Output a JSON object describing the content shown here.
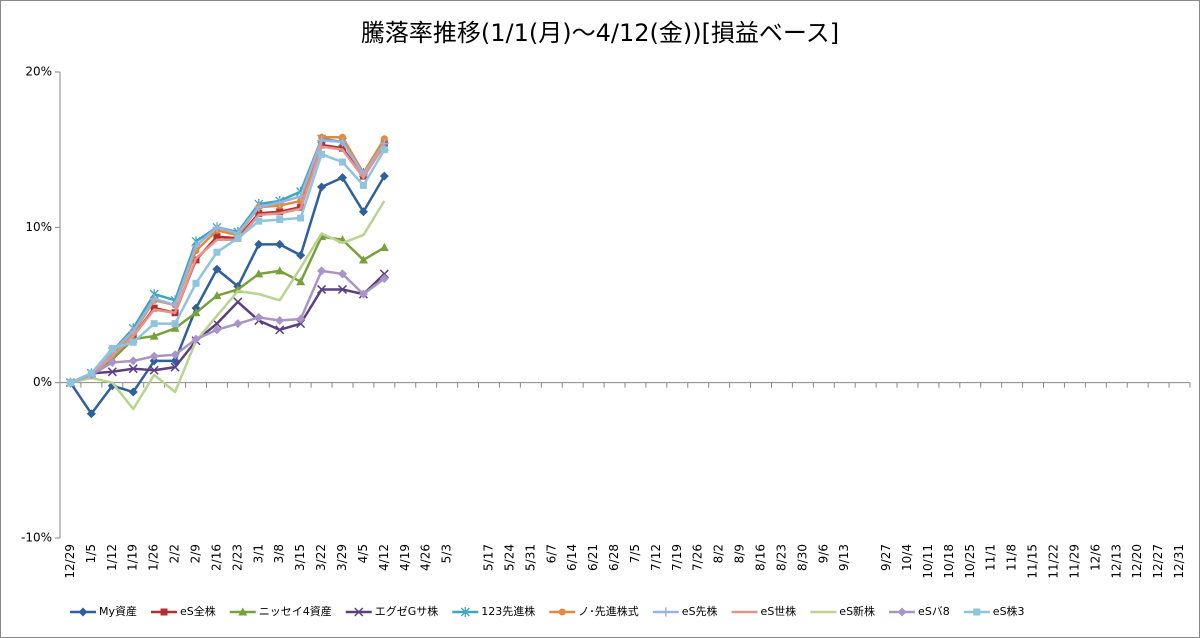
{
  "chart_data": {
    "type": "line",
    "title": "騰落率推移(1/1(月)～4/12(金))[損益ベース]",
    "categories": [
      "12/29",
      "1/5",
      "1/12",
      "1/19",
      "1/26",
      "2/2",
      "2/9",
      "2/16",
      "2/23",
      "3/1",
      "3/8",
      "3/15",
      "3/22",
      "3/29",
      "4/5",
      "4/12",
      "4/19",
      "4/26",
      "5/3",
      null,
      "5/17",
      "5/24",
      "5/31",
      "6/7",
      "6/14",
      "6/21",
      "6/28",
      "7/5",
      "7/12",
      "7/19",
      "7/26",
      "8/2",
      "8/9",
      "8/16",
      "8/23",
      "8/30",
      "9/6",
      "9/13",
      null,
      "9/27",
      "10/4",
      "10/11",
      "10/18",
      "10/25",
      "11/1",
      "11/8",
      "11/15",
      "11/22",
      "11/29",
      "12/6",
      "12/13",
      "12/20",
      "12/27",
      "12/31"
    ],
    "ylim": [
      -10,
      20
    ],
    "yticks": [
      {
        "value": -10,
        "label": "-10%"
      },
      {
        "value": 0,
        "label": "0%"
      },
      {
        "value": 10,
        "label": "10%"
      },
      {
        "value": 20,
        "label": "20%"
      }
    ],
    "grid": false,
    "legend": "bottom",
    "series": [
      {
        "name": "My資産",
        "color": "#2e5f9e",
        "marker": "diamond",
        "values": [
          0,
          -2.0,
          -0.2,
          -0.6,
          1.4,
          1.4,
          4.8,
          7.3,
          6.2,
          8.9,
          8.9,
          8.2,
          12.6,
          13.2,
          11.0,
          13.3,
          null,
          null,
          null,
          null,
          null,
          null,
          null,
          null,
          null,
          null,
          null,
          null,
          null,
          null,
          null,
          null,
          null,
          null,
          null,
          null,
          null,
          null,
          null,
          null,
          null,
          null,
          null,
          null,
          null,
          null,
          null,
          null,
          null,
          null,
          null,
          null,
          null,
          null
        ]
      },
      {
        "name": "eS全株",
        "color": "#b2302f",
        "marker": "square",
        "values": [
          0,
          0.5,
          1.8,
          3.0,
          4.8,
          4.5,
          7.9,
          9.4,
          9.3,
          10.9,
          11.0,
          11.3,
          15.3,
          15.1,
          13.3,
          15.4,
          null,
          null,
          null,
          null,
          null,
          null,
          null,
          null,
          null,
          null,
          null,
          null,
          null,
          null,
          null,
          null,
          null,
          null,
          null,
          null,
          null,
          null,
          null,
          null,
          null,
          null,
          null,
          null,
          null,
          null,
          null,
          null,
          null,
          null,
          null,
          null,
          null,
          null
        ]
      },
      {
        "name": "ニッセイ4資産",
        "color": "#77a13a",
        "marker": "triangle",
        "values": [
          0,
          0.5,
          1.5,
          2.8,
          3.0,
          3.5,
          4.5,
          5.6,
          6.0,
          7.0,
          7.2,
          6.5,
          9.4,
          9.2,
          7.9,
          8.7,
          null,
          null,
          null,
          null,
          null,
          null,
          null,
          null,
          null,
          null,
          null,
          null,
          null,
          null,
          null,
          null,
          null,
          null,
          null,
          null,
          null,
          null,
          null,
          null,
          null,
          null,
          null,
          null,
          null,
          null,
          null,
          null,
          null,
          null,
          null,
          null,
          null,
          null
        ]
      },
      {
        "name": "エグゼGサ株",
        "color": "#5c3f83",
        "marker": "x",
        "values": [
          0,
          0.6,
          0.7,
          0.9,
          0.8,
          1.0,
          2.7,
          3.8,
          5.2,
          4.0,
          3.4,
          3.8,
          6.0,
          6.0,
          5.7,
          7.0,
          null,
          null,
          null,
          null,
          null,
          null,
          null,
          null,
          null,
          null,
          null,
          null,
          null,
          null,
          null,
          null,
          null,
          null,
          null,
          null,
          null,
          null,
          null,
          null,
          null,
          null,
          null,
          null,
          null,
          null,
          null,
          null,
          null,
          null,
          null,
          null,
          null,
          null
        ]
      },
      {
        "name": "123先進株",
        "color": "#3fa6c1",
        "marker": "star",
        "values": [
          0,
          0.6,
          2.0,
          3.5,
          5.7,
          5.3,
          9.1,
          10.0,
          9.7,
          11.5,
          11.7,
          12.3,
          15.7,
          15.5,
          13.5,
          15.2,
          null,
          null,
          null,
          null,
          null,
          null,
          null,
          null,
          null,
          null,
          null,
          null,
          null,
          null,
          null,
          null,
          null,
          null,
          null,
          null,
          null,
          null,
          null,
          null,
          null,
          null,
          null,
          null,
          null,
          null,
          null,
          null,
          null,
          null,
          null,
          null,
          null,
          null
        ]
      },
      {
        "name": "ノ･先進株式",
        "color": "#e2893a",
        "marker": "circle",
        "values": [
          0,
          0.5,
          1.8,
          3.2,
          5.3,
          5.0,
          8.5,
          9.8,
          9.5,
          11.3,
          11.4,
          11.7,
          15.8,
          15.8,
          13.5,
          15.7,
          null,
          null,
          null,
          null,
          null,
          null,
          null,
          null,
          null,
          null,
          null,
          null,
          null,
          null,
          null,
          null,
          null,
          null,
          null,
          null,
          null,
          null,
          null,
          null,
          null,
          null,
          null,
          null,
          null,
          null,
          null,
          null,
          null,
          null,
          null,
          null,
          null,
          null
        ]
      },
      {
        "name": "eS先株",
        "color": "#98b4e0",
        "marker": "plus",
        "values": [
          0,
          0.5,
          2.0,
          3.3,
          5.4,
          5.0,
          8.8,
          10.0,
          9.6,
          11.3,
          11.6,
          12.0,
          15.6,
          15.5,
          13.4,
          15.4,
          null,
          null,
          null,
          null,
          null,
          null,
          null,
          null,
          null,
          null,
          null,
          null,
          null,
          null,
          null,
          null,
          null,
          null,
          null,
          null,
          null,
          null,
          null,
          null,
          null,
          null,
          null,
          null,
          null,
          null,
          null,
          null,
          null,
          null,
          null,
          null,
          null,
          null
        ]
      },
      {
        "name": "eS世株",
        "color": "#e6928d",
        "marker": "none",
        "values": [
          0,
          0.5,
          1.7,
          3.0,
          4.7,
          4.5,
          8.0,
          9.2,
          9.2,
          10.8,
          10.9,
          11.2,
          15.2,
          15.0,
          13.2,
          15.3,
          null,
          null,
          null,
          null,
          null,
          null,
          null,
          null,
          null,
          null,
          null,
          null,
          null,
          null,
          null,
          null,
          null,
          null,
          null,
          null,
          null,
          null,
          null,
          null,
          null,
          null,
          null,
          null,
          null,
          null,
          null,
          null,
          null,
          null,
          null,
          null,
          null,
          null
        ]
      },
      {
        "name": "eS新株",
        "color": "#b8d48f",
        "marker": "none",
        "values": [
          0,
          0.3,
          0.0,
          -1.7,
          0.5,
          -0.6,
          2.7,
          4.3,
          5.9,
          5.7,
          5.3,
          7.4,
          9.6,
          9.0,
          9.5,
          11.7,
          null,
          null,
          null,
          null,
          null,
          null,
          null,
          null,
          null,
          null,
          null,
          null,
          null,
          null,
          null,
          null,
          null,
          null,
          null,
          null,
          null,
          null,
          null,
          null,
          null,
          null,
          null,
          null,
          null,
          null,
          null,
          null,
          null,
          null,
          null,
          null,
          null,
          null
        ]
      },
      {
        "name": "eSバ8",
        "color": "#a995c5",
        "marker": "diamond",
        "values": [
          0,
          0.5,
          1.3,
          1.4,
          1.7,
          1.8,
          2.8,
          3.4,
          3.8,
          4.2,
          4.0,
          4.1,
          7.2,
          7.0,
          5.7,
          6.7,
          null,
          null,
          null,
          null,
          null,
          null,
          null,
          null,
          null,
          null,
          null,
          null,
          null,
          null,
          null,
          null,
          null,
          null,
          null,
          null,
          null,
          null,
          null,
          null,
          null,
          null,
          null,
          null,
          null,
          null,
          null,
          null,
          null,
          null,
          null,
          null,
          null,
          null
        ]
      },
      {
        "name": "eS株3",
        "color": "#8ec4de",
        "marker": "square",
        "values": [
          0,
          0.6,
          2.2,
          2.6,
          3.8,
          3.8,
          6.4,
          8.4,
          9.3,
          10.4,
          10.5,
          10.6,
          14.7,
          14.2,
          12.7,
          15.0,
          null,
          null,
          null,
          null,
          null,
          null,
          null,
          null,
          null,
          null,
          null,
          null,
          null,
          null,
          null,
          null,
          null,
          null,
          null,
          null,
          null,
          null,
          null,
          null,
          null,
          null,
          null,
          null,
          null,
          null,
          null,
          null,
          null,
          null,
          null,
          null,
          null,
          null
        ]
      }
    ]
  }
}
